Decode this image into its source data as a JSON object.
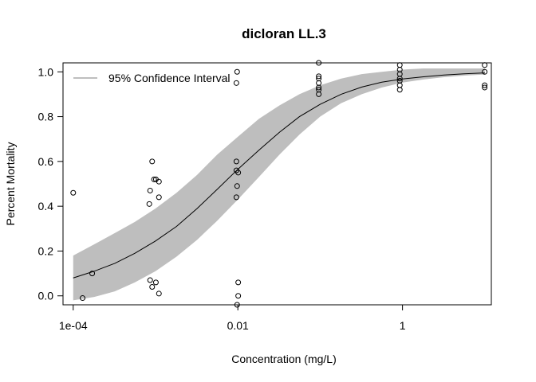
{
  "chart_data": {
    "type": "scatter",
    "title": "dicloran LL.3",
    "xlabel": "Concentration (mg/L)",
    "ylabel": "Percent Mortality",
    "x_scale": "log10",
    "xlim": [
      7.52e-05,
      12.0
    ],
    "ylim": [
      -0.04,
      1.04
    ],
    "x_ticks": [
      {
        "value": 0.0001,
        "label": "1e-04"
      },
      {
        "value": 0.01,
        "label": "0.01"
      },
      {
        "value": 1,
        "label": "1"
      }
    ],
    "y_ticks": [
      {
        "value": 0.0,
        "label": "0.0"
      },
      {
        "value": 0.2,
        "label": "0.2"
      },
      {
        "value": 0.4,
        "label": "0.4"
      },
      {
        "value": 0.6,
        "label": "0.6"
      },
      {
        "value": 0.8,
        "label": "0.8"
      },
      {
        "value": 1.0,
        "label": "1.0"
      }
    ],
    "legend": {
      "position": "top-left",
      "entries": [
        {
          "label": "95% Confidence Interval",
          "color": "#bebebe"
        }
      ]
    },
    "grid": false,
    "colors": {
      "ci_band": "#bebebe",
      "curve": "#000000",
      "points": "#000000"
    },
    "fitted_curve": {
      "x": [
        0.0001,
        0.00018,
        0.00032,
        0.00056,
        0.001,
        0.0018,
        0.0032,
        0.0056,
        0.01,
        0.018,
        0.032,
        0.056,
        0.1,
        0.18,
        0.32,
        0.56,
        1.0,
        1.8,
        3.2,
        5.6,
        10.0
      ],
      "y": [
        0.08,
        0.11,
        0.145,
        0.19,
        0.245,
        0.31,
        0.39,
        0.475,
        0.565,
        0.65,
        0.73,
        0.8,
        0.855,
        0.9,
        0.932,
        0.954,
        0.968,
        0.978,
        0.986,
        0.991,
        0.995
      ],
      "ci_lower": [
        -0.02,
        -0.005,
        0.02,
        0.06,
        0.11,
        0.175,
        0.25,
        0.335,
        0.43,
        0.53,
        0.63,
        0.72,
        0.8,
        0.86,
        0.9,
        0.93,
        0.952,
        0.966,
        0.976,
        0.983,
        0.988
      ],
      "ci_upper": [
        0.18,
        0.23,
        0.28,
        0.33,
        0.39,
        0.46,
        0.54,
        0.63,
        0.71,
        0.79,
        0.85,
        0.9,
        0.94,
        0.97,
        0.99,
        1.0,
        1.01,
        1.015,
        1.015,
        1.015,
        1.015
      ]
    },
    "points": [
      {
        "x": 0.0001,
        "y": 0.46
      },
      {
        "x": 0.00017,
        "y": 0.1
      },
      {
        "x": 0.00013,
        "y": -0.01
      },
      {
        "x": 0.00086,
        "y": 0.47
      },
      {
        "x": 0.00091,
        "y": 0.6
      },
      {
        "x": 0.00096,
        "y": 0.52
      },
      {
        "x": 0.00101,
        "y": 0.52
      },
      {
        "x": 0.0011,
        "y": 0.51
      },
      {
        "x": 0.00084,
        "y": 0.41
      },
      {
        "x": 0.0011,
        "y": 0.44
      },
      {
        "x": 0.00086,
        "y": 0.07
      },
      {
        "x": 0.00091,
        "y": 0.04
      },
      {
        "x": 0.00101,
        "y": 0.06
      },
      {
        "x": 0.0011,
        "y": 0.01
      },
      {
        "x": 0.0098,
        "y": 1.0
      },
      {
        "x": 0.0096,
        "y": 0.95
      },
      {
        "x": 0.0096,
        "y": 0.6
      },
      {
        "x": 0.0096,
        "y": 0.56
      },
      {
        "x": 0.0101,
        "y": 0.55
      },
      {
        "x": 0.0098,
        "y": 0.49
      },
      {
        "x": 0.0096,
        "y": 0.44
      },
      {
        "x": 0.0101,
        "y": 0.06
      },
      {
        "x": 0.0101,
        "y": 0.0
      },
      {
        "x": 0.0098,
        "y": -0.04
      },
      {
        "x": 0.0961,
        "y": 1.04
      },
      {
        "x": 0.0961,
        "y": 0.98
      },
      {
        "x": 0.0961,
        "y": 0.97
      },
      {
        "x": 0.0961,
        "y": 0.95
      },
      {
        "x": 0.0961,
        "y": 0.93
      },
      {
        "x": 0.0961,
        "y": 0.92
      },
      {
        "x": 0.0961,
        "y": 0.9
      },
      {
        "x": 0.927,
        "y": 1.03
      },
      {
        "x": 0.927,
        "y": 1.01
      },
      {
        "x": 0.927,
        "y": 0.99
      },
      {
        "x": 0.927,
        "y": 0.97
      },
      {
        "x": 0.927,
        "y": 0.96
      },
      {
        "x": 0.927,
        "y": 0.94
      },
      {
        "x": 0.927,
        "y": 0.92
      },
      {
        "x": 9.96,
        "y": 1.03
      },
      {
        "x": 9.96,
        "y": 1.0
      },
      {
        "x": 9.96,
        "y": 0.94
      },
      {
        "x": 9.96,
        "y": 0.93
      }
    ]
  }
}
